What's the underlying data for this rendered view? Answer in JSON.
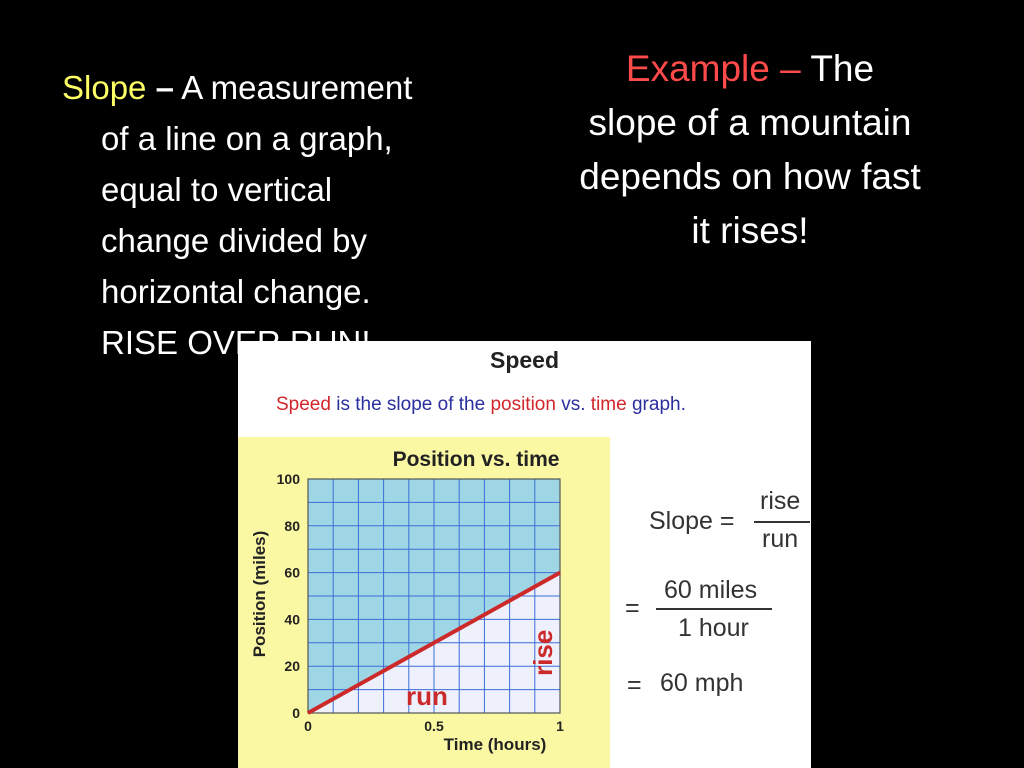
{
  "definition": {
    "term": "Slope",
    "dash": "–",
    "lines": [
      "A measurement",
      "of a line on a graph,",
      "equal to vertical",
      "change divided by",
      "horizontal change.",
      "RISE OVER RUN!"
    ]
  },
  "example": {
    "label": "Example –",
    "text_first": "The",
    "lines": [
      "slope of a mountain",
      "depends on how fast",
      "it rises!"
    ]
  },
  "panel": {
    "title": "Speed",
    "subtitle": {
      "w1": "Speed",
      "w2": "is the slope of the",
      "w3": "position",
      "w4": "vs.",
      "w5": "time",
      "w6": "graph."
    }
  },
  "chart_data": {
    "type": "line",
    "title": "Position vs. time",
    "xlabel": "Time (hours)",
    "ylabel": "Position (miles)",
    "xlim": [
      0,
      1
    ],
    "ylim": [
      0,
      100
    ],
    "x_ticks": [
      "0",
      "0.5",
      "1"
    ],
    "y_ticks": [
      "0",
      "20",
      "40",
      "60",
      "80",
      "100"
    ],
    "grid": true,
    "series": [
      {
        "x": [
          0,
          1
        ],
        "y": [
          0,
          60
        ]
      }
    ],
    "annotations": {
      "rise": "rise",
      "run": "run"
    },
    "colors": {
      "plot_bg": "#9fd6e6",
      "grid": "#3b6fd6",
      "line": "#cc2a2a",
      "triangle": "#eef0fb"
    }
  },
  "formula": {
    "slope_label": "Slope =",
    "rise": "rise",
    "run": "run",
    "eq1": "=",
    "num": "60 miles",
    "den": "1 hour",
    "eq2": "=",
    "result": "60 mph"
  }
}
